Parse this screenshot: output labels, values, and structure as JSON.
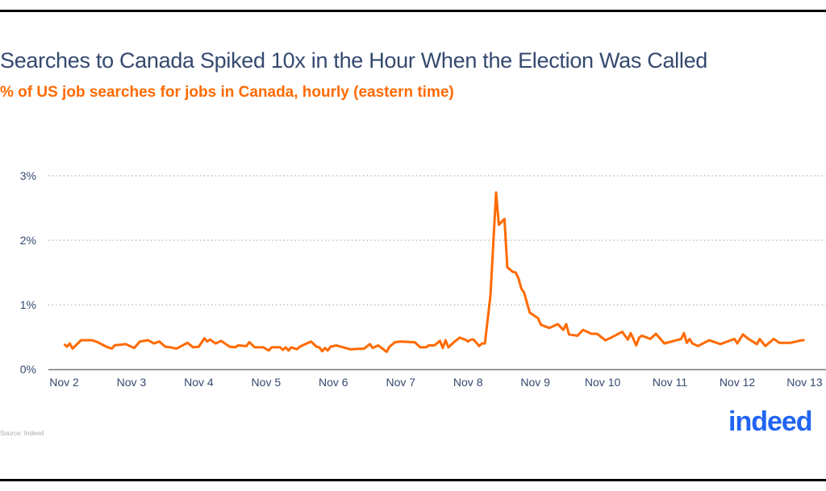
{
  "title": "Searches to Canada Spiked 10x in the Hour When the Election Was Called",
  "subtitle": "% of US job searches for jobs in Canada, hourly (eastern time)",
  "source": "Source: Indeed",
  "logo_text": "indeed",
  "colors": {
    "line": "#ff6a00",
    "title": "#34496f",
    "logo": "#2164f3",
    "grid": "#888888"
  },
  "chart_data": {
    "type": "line",
    "title": "Searches to Canada Spiked 10x in the Hour When the Election Was Called",
    "subtitle": "% of US job searches for jobs in Canada, hourly (eastern time)",
    "xlabel": "",
    "ylabel": "",
    "ylim": [
      0,
      3
    ],
    "y_ticks": [
      "0%",
      "1%",
      "2%",
      "3%"
    ],
    "x_ticks": [
      "Nov 2",
      "Nov 3",
      "Nov 4",
      "Nov 5",
      "Nov 6",
      "Nov 7",
      "Nov 8",
      "Nov 9",
      "Nov 10",
      "Nov 11",
      "Nov 12",
      "Nov 13"
    ],
    "grid": "horizontal dotted",
    "series": [
      {
        "points": [
          [
            "Nov 2 00:00",
            0.39
          ],
          [
            "Nov 2 01:00",
            0.35
          ],
          [
            "Nov 2 02:00",
            0.4
          ],
          [
            "Nov 2 03:00",
            0.32
          ],
          [
            "Nov 2 06:00",
            0.45
          ],
          [
            "Nov 2 10:00",
            0.45
          ],
          [
            "Nov 2 12:00",
            0.42
          ],
          [
            "Nov 2 15:00",
            0.35
          ],
          [
            "Nov 2 17:00",
            0.32
          ],
          [
            "Nov 2 18:00",
            0.37
          ],
          [
            "Nov 2 22:00",
            0.39
          ],
          [
            "Nov 3 01:00",
            0.33
          ],
          [
            "Nov 3 03:00",
            0.43
          ],
          [
            "Nov 3 06:00",
            0.45
          ],
          [
            "Nov 3 08:00",
            0.4
          ],
          [
            "Nov 3 10:00",
            0.43
          ],
          [
            "Nov 3 12:00",
            0.35
          ],
          [
            "Nov 3 14:00",
            0.34
          ],
          [
            "Nov 3 16:00",
            0.32
          ],
          [
            "Nov 3 20:00",
            0.41
          ],
          [
            "Nov 3 22:00",
            0.34
          ],
          [
            "Nov 4 00:00",
            0.35
          ],
          [
            "Nov 4 02:00",
            0.48
          ],
          [
            "Nov 4 03:00",
            0.43
          ],
          [
            "Nov 4 04:00",
            0.46
          ],
          [
            "Nov 4 06:00",
            0.4
          ],
          [
            "Nov 4 08:00",
            0.44
          ],
          [
            "Nov 4 11:00",
            0.35
          ],
          [
            "Nov 4 13:00",
            0.34
          ],
          [
            "Nov 4 14:00",
            0.37
          ],
          [
            "Nov 4 17:00",
            0.36
          ],
          [
            "Nov 4 18:00",
            0.42
          ],
          [
            "Nov 4 20:00",
            0.34
          ],
          [
            "Nov 4 23:00",
            0.34
          ],
          [
            "Nov 5 01:00",
            0.29
          ],
          [
            "Nov 5 02:00",
            0.34
          ],
          [
            "Nov 5 05:00",
            0.34
          ],
          [
            "Nov 5 06:00",
            0.3
          ],
          [
            "Nov 5 07:00",
            0.34
          ],
          [
            "Nov 5 08:00",
            0.29
          ],
          [
            "Nov 5 09:00",
            0.34
          ],
          [
            "Nov 5 11:00",
            0.31
          ],
          [
            "Nov 5 12:00",
            0.35
          ],
          [
            "Nov 5 16:00",
            0.43
          ],
          [
            "Nov 5 18:00",
            0.35
          ],
          [
            "Nov 5 19:00",
            0.34
          ],
          [
            "Nov 5 20:00",
            0.28
          ],
          [
            "Nov 5 21:00",
            0.33
          ],
          [
            "Nov 5 22:00",
            0.29
          ],
          [
            "Nov 5 23:00",
            0.35
          ],
          [
            "Nov 6 01:00",
            0.37
          ],
          [
            "Nov 6 06:00",
            0.31
          ],
          [
            "Nov 6 11:00",
            0.32
          ],
          [
            "Nov 6 13:00",
            0.39
          ],
          [
            "Nov 6 14:00",
            0.33
          ],
          [
            "Nov 6 16:00",
            0.37
          ],
          [
            "Nov 6 19:00",
            0.27
          ],
          [
            "Nov 6 20:00",
            0.35
          ],
          [
            "Nov 6 22:00",
            0.42
          ],
          [
            "Nov 7 00:00",
            0.43
          ],
          [
            "Nov 7 04:00",
            0.42
          ],
          [
            "Nov 7 05:00",
            0.42
          ],
          [
            "Nov 7 07:00",
            0.34
          ],
          [
            "Nov 7 09:00",
            0.34
          ],
          [
            "Nov 7 10:00",
            0.37
          ],
          [
            "Nov 7 12:00",
            0.37
          ],
          [
            "Nov 7 14:00",
            0.44
          ],
          [
            "Nov 7 15:00",
            0.33
          ],
          [
            "Nov 7 16:00",
            0.45
          ],
          [
            "Nov 7 17:00",
            0.34
          ],
          [
            "Nov 7 19:00",
            0.42
          ],
          [
            "Nov 7 21:00",
            0.49
          ],
          [
            "Nov 7 23:00",
            0.46
          ],
          [
            "Nov 8 00:00",
            0.43
          ],
          [
            "Nov 8 01:00",
            0.46
          ],
          [
            "Nov 8 02:00",
            0.46
          ],
          [
            "Nov 8 04:00",
            0.36
          ],
          [
            "Nov 8 05:00",
            0.4
          ],
          [
            "Nov 8 06:00",
            0.4
          ],
          [
            "Nov 8 08:00",
            1.14
          ],
          [
            "Nov 8 10:00",
            2.74
          ],
          [
            "Nov 8 11:00",
            2.24
          ],
          [
            "Nov 8 13:00",
            2.33
          ],
          [
            "Nov 8 14:00",
            1.58
          ],
          [
            "Nov 8 16:00",
            1.51
          ],
          [
            "Nov 8 17:00",
            1.5
          ],
          [
            "Nov 8 18:00",
            1.41
          ],
          [
            "Nov 8 19:00",
            1.25
          ],
          [
            "Nov 8 20:00",
            1.19
          ],
          [
            "Nov 8 22:00",
            0.88
          ],
          [
            "Nov 9 01:00",
            0.79
          ],
          [
            "Nov 9 02:00",
            0.69
          ],
          [
            "Nov 9 05:00",
            0.64
          ],
          [
            "Nov 9 08:00",
            0.7
          ],
          [
            "Nov 9 10:00",
            0.61
          ],
          [
            "Nov 9 11:00",
            0.7
          ],
          [
            "Nov 9 12:00",
            0.54
          ],
          [
            "Nov 9 15:00",
            0.52
          ],
          [
            "Nov 9 17:00",
            0.61
          ],
          [
            "Nov 9 20:00",
            0.55
          ],
          [
            "Nov 9 22:00",
            0.55
          ],
          [
            "Nov 10 01:00",
            0.45
          ],
          [
            "Nov 10 03:00",
            0.49
          ],
          [
            "Nov 10 07:00",
            0.58
          ],
          [
            "Nov 10 09:00",
            0.46
          ],
          [
            "Nov 10 10:00",
            0.56
          ],
          [
            "Nov 10 12:00",
            0.37
          ],
          [
            "Nov 10 13:00",
            0.49
          ],
          [
            "Nov 10 14:00",
            0.52
          ],
          [
            "Nov 10 17:00",
            0.47
          ],
          [
            "Nov 10 19:00",
            0.55
          ],
          [
            "Nov 10 22:00",
            0.4
          ],
          [
            "Nov 11 04:00",
            0.47
          ],
          [
            "Nov 11 05:00",
            0.56
          ],
          [
            "Nov 11 06:00",
            0.41
          ],
          [
            "Nov 11 07:00",
            0.47
          ],
          [
            "Nov 11 08:00",
            0.4
          ],
          [
            "Nov 11 10:00",
            0.36
          ],
          [
            "Nov 11 14:00",
            0.45
          ],
          [
            "Nov 11 18:00",
            0.39
          ],
          [
            "Nov 11 23:00",
            0.47
          ],
          [
            "Nov 12 00:00",
            0.4
          ],
          [
            "Nov 12 02:00",
            0.54
          ],
          [
            "Nov 12 04:00",
            0.47
          ],
          [
            "Nov 12 07:00",
            0.39
          ],
          [
            "Nov 12 08:00",
            0.47
          ],
          [
            "Nov 12 10:00",
            0.36
          ],
          [
            "Nov 12 13:00",
            0.47
          ],
          [
            "Nov 12 15:00",
            0.41
          ],
          [
            "Nov 12 19:00",
            0.41
          ],
          [
            "Nov 12 23:00",
            0.45
          ],
          [
            "Nov 13 00:00",
            0.45
          ]
        ]
      }
    ]
  }
}
